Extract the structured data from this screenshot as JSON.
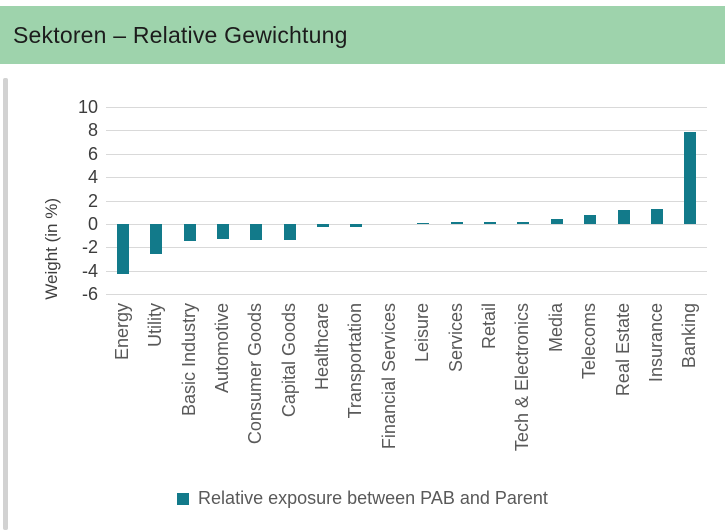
{
  "header": {
    "title": "Sektoren – Relative Gewichtung"
  },
  "colors": {
    "header_bg": "#9ed3ac",
    "bar_teal": "#127a8a",
    "gridline": "#d9d9d9",
    "axis_text": "#3d3d3d",
    "label_text": "#595959"
  },
  "chart_data": {
    "type": "bar",
    "title": "Sektoren – Relative Gewichtung",
    "xlabel": "",
    "ylabel": "Weight (in %)",
    "ylim": [
      -6,
      10
    ],
    "ytick_step": 2,
    "grid": true,
    "legend_position": "bottom",
    "legend": "Relative exposure between PAB and Parent",
    "categories": [
      "Energy",
      "Utility",
      "Basic Industry",
      "Automotive",
      "Consumer Goods",
      "Capital Goods",
      "Healthcare",
      "Transportation",
      "Financial Services",
      "Leisure",
      "Services",
      "Retail",
      "Tech & Electronics",
      "Media",
      "Telecoms",
      "Real Estate",
      "Insurance",
      "Banking"
    ],
    "values": [
      -4.3,
      -2.6,
      -1.5,
      -1.3,
      -1.4,
      -1.4,
      -0.3,
      -0.3,
      0.0,
      0.1,
      0.2,
      0.2,
      0.2,
      0.4,
      0.8,
      1.2,
      1.3,
      7.9
    ]
  }
}
